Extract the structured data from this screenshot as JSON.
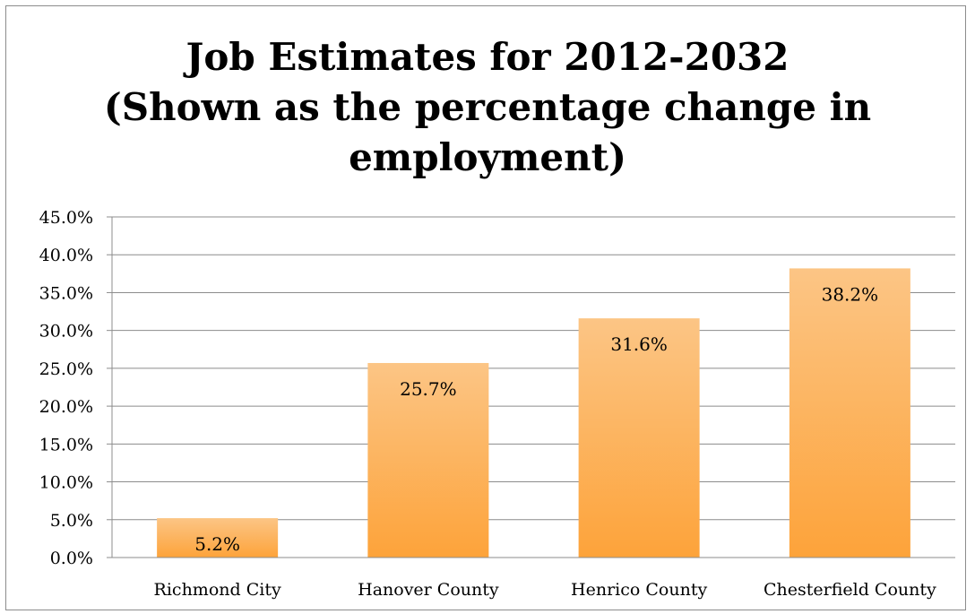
{
  "chart_data": {
    "type": "bar",
    "title_lines": [
      "Job Estimates for 2012-2032",
      "(Shown as the percentage change  in",
      "employment)"
    ],
    "categories": [
      "Richmond City",
      "Hanover County",
      "Henrico County",
      "Chesterfield County"
    ],
    "values": [
      5.2,
      25.7,
      31.6,
      38.2
    ],
    "data_labels": [
      "5.2%",
      "25.7%",
      "31.6%",
      "38.2%"
    ],
    "y_ticks": [
      "0.0%",
      "5.0%",
      "10.0%",
      "15.0%",
      "20.0%",
      "25.0%",
      "30.0%",
      "35.0%",
      "40.0%",
      "45.0%"
    ],
    "ylim": [
      0,
      45
    ],
    "ystep": 5,
    "grid": true,
    "legend": "none",
    "bar_color_top": "#fcc585",
    "bar_color_bottom": "#fda33a",
    "grid_color": "#8c8c8c"
  }
}
